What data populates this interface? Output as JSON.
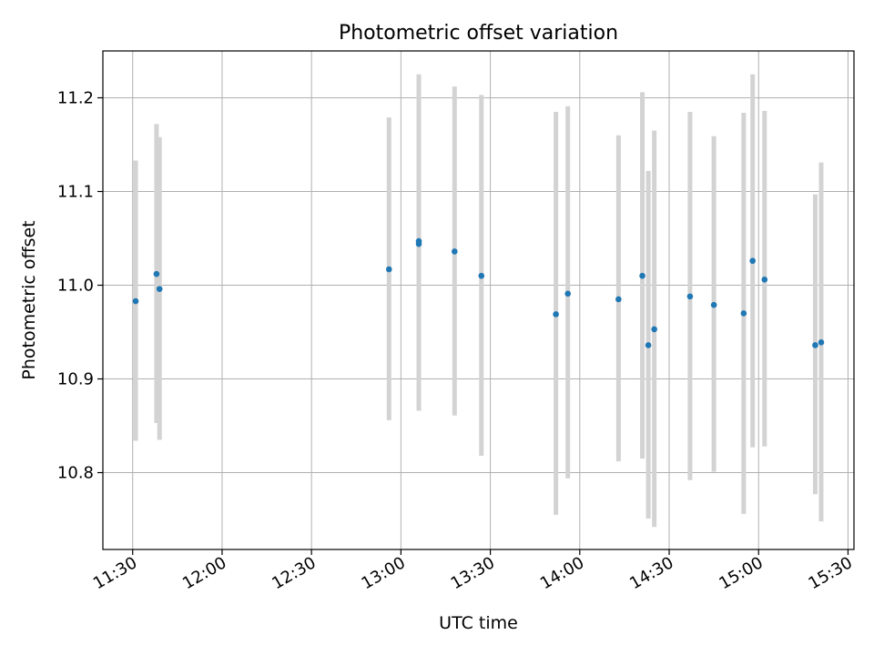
{
  "chart_data": {
    "type": "scatter",
    "title": "Photometric offset variation",
    "xlabel": "UTC time",
    "ylabel": "Photometric offset",
    "x_axis_type": "time",
    "xlim": [
      "11:20",
      "15:32"
    ],
    "ylim": [
      10.718,
      11.25
    ],
    "xticks": [
      "11:30",
      "12:00",
      "12:30",
      "13:00",
      "13:30",
      "14:00",
      "14:30",
      "15:00",
      "15:30"
    ],
    "yticks": [
      10.8,
      10.9,
      11.0,
      11.1,
      11.2
    ],
    "ytick_labels": [
      "10.8",
      "10.9",
      "11.0",
      "11.1",
      "11.2"
    ],
    "grid": true,
    "colors": {
      "point": "#1f77b4",
      "errorbar": "#d3d3d3",
      "grid": "#b0b0b0"
    },
    "points": [
      {
        "time": "11:31",
        "y": 10.983,
        "lo": 10.834,
        "hi": 11.133
      },
      {
        "time": "11:38",
        "y": 11.012,
        "lo": 10.853,
        "hi": 11.172
      },
      {
        "time": "11:39",
        "y": 10.996,
        "lo": 10.835,
        "hi": 11.158
      },
      {
        "time": "12:56",
        "y": 11.017,
        "lo": 10.856,
        "hi": 11.179
      },
      {
        "time": "13:06",
        "y": 11.047,
        "lo": 10.866,
        "hi": 11.225
      },
      {
        "time": "13:06",
        "y": 11.044,
        "lo": 10.866,
        "hi": 11.224
      },
      {
        "time": "13:18",
        "y": 11.036,
        "lo": 10.861,
        "hi": 11.212
      },
      {
        "time": "13:27",
        "y": 11.01,
        "lo": 10.818,
        "hi": 11.203
      },
      {
        "time": "13:52",
        "y": 10.969,
        "lo": 10.755,
        "hi": 11.185
      },
      {
        "time": "13:56",
        "y": 10.991,
        "lo": 10.794,
        "hi": 11.191
      },
      {
        "time": "14:13",
        "y": 10.985,
        "lo": 10.812,
        "hi": 11.16
      },
      {
        "time": "14:21",
        "y": 11.01,
        "lo": 10.815,
        "hi": 11.206
      },
      {
        "time": "14:23",
        "y": 10.936,
        "lo": 10.751,
        "hi": 11.122
      },
      {
        "time": "14:25",
        "y": 10.953,
        "lo": 10.742,
        "hi": 11.165
      },
      {
        "time": "14:37",
        "y": 10.988,
        "lo": 10.792,
        "hi": 11.185
      },
      {
        "time": "14:45",
        "y": 10.979,
        "lo": 10.801,
        "hi": 11.159
      },
      {
        "time": "14:55",
        "y": 10.97,
        "lo": 10.756,
        "hi": 11.184
      },
      {
        "time": "14:58",
        "y": 11.026,
        "lo": 10.827,
        "hi": 11.225
      },
      {
        "time": "15:02",
        "y": 11.006,
        "lo": 10.828,
        "hi": 11.186
      },
      {
        "time": "15:19",
        "y": 10.936,
        "lo": 10.777,
        "hi": 11.097
      },
      {
        "time": "15:21",
        "y": 10.939,
        "lo": 10.748,
        "hi": 11.131
      }
    ]
  }
}
